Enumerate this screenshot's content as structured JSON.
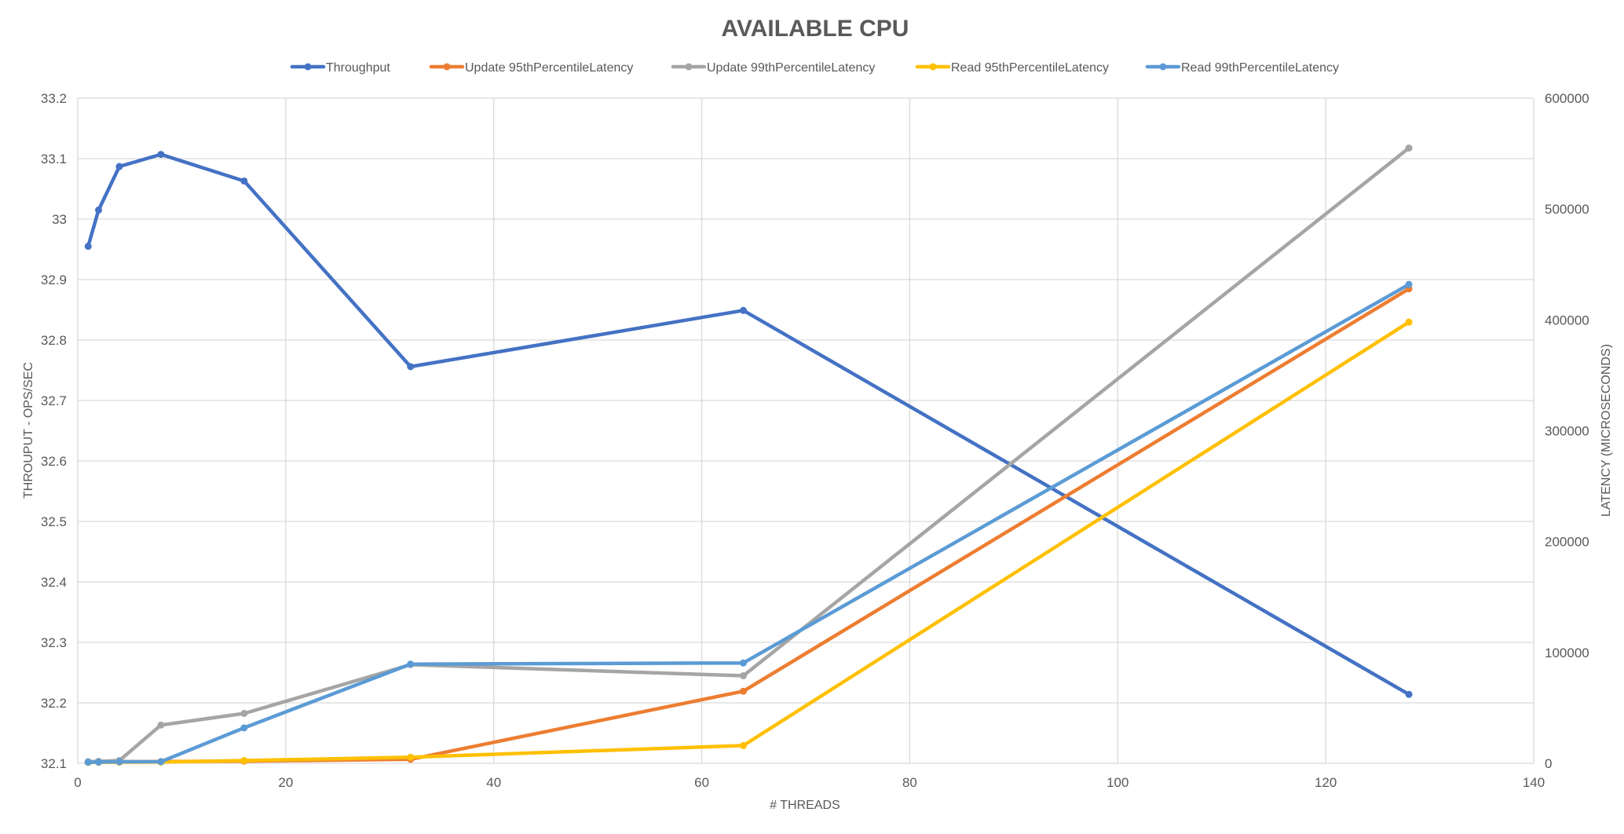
{
  "chart_data": {
    "type": "line",
    "title": "AVAILABLE CPU",
    "xlabel": "# THREADS",
    "ylabel": "THROUPUT -  OPS/SEC",
    "y2label": "LATENCY (MICROSECONDS)",
    "xlim": [
      0,
      140
    ],
    "ylim": [
      32.1,
      33.2
    ],
    "y2lim": [
      0,
      600000
    ],
    "x_ticks": [
      "0",
      "20",
      "40",
      "60",
      "80",
      "100",
      "120",
      "140"
    ],
    "y_ticks": [
      "32.1",
      "32.2",
      "32.3",
      "32.4",
      "32.5",
      "32.6",
      "32.7",
      "32.8",
      "32.9",
      "33",
      "33.1",
      "33.2"
    ],
    "y2_ticks": [
      "0",
      "100000",
      "200000",
      "300000",
      "400000",
      "500000",
      "600000"
    ],
    "grid": true,
    "legend_position": "top",
    "series": [
      {
        "name": "Throughput",
        "axis": "left",
        "color": "#4472C4",
        "x": [
          1,
          2,
          4,
          8,
          16,
          32,
          64,
          128
        ],
        "y": [
          32.955,
          33.015,
          33.087,
          33.107,
          33.063,
          32.756,
          32.849,
          32.214
        ]
      },
      {
        "name": "Update 95thPercentileLatency",
        "axis": "right",
        "color": "#ED7D31",
        "x": [
          1,
          2,
          4,
          8,
          16,
          32,
          64,
          128
        ],
        "y": [
          1200,
          1300,
          1500,
          1600,
          2000,
          3600,
          65000,
          428000
        ]
      },
      {
        "name": "Update 99thPercentileLatency",
        "axis": "right",
        "color": "#A5A5A5",
        "x": [
          1,
          2,
          4,
          8,
          16,
          32,
          64,
          128
        ],
        "y": [
          1500,
          1800,
          2500,
          34500,
          45000,
          89000,
          79000,
          555000
        ]
      },
      {
        "name": "Read 95thPercentileLatency",
        "axis": "right",
        "color": "#FFC000",
        "x": [
          1,
          2,
          4,
          8,
          16,
          32,
          64,
          128
        ],
        "y": [
          800,
          900,
          1000,
          1100,
          2500,
          5500,
          16000,
          398000
        ]
      },
      {
        "name": "Read 99thPercentileLatency",
        "axis": "right",
        "color": "#5B9BD5",
        "x": [
          1,
          2,
          4,
          8,
          16,
          32,
          64,
          128
        ],
        "y": [
          1000,
          1100,
          1400,
          1500,
          32000,
          89500,
          90500,
          432000
        ]
      }
    ]
  }
}
